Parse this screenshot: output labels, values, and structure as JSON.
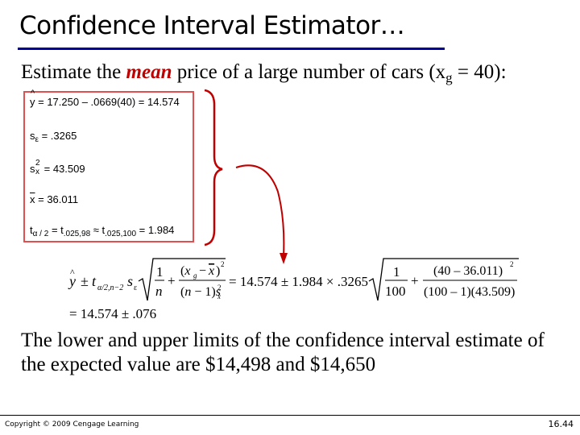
{
  "title": "Confidence Interval Estimator…",
  "subtitle": {
    "before": "Estimate the ",
    "emphasis": "mean",
    "after": " price of a large number of cars (x",
    "sub": "g",
    "end": " = 40):"
  },
  "stats": {
    "yhat_expr": "= 17.250 – .0669(40) = 14.574",
    "se_expr": "= .3265",
    "sx2_expr": "= 43.509",
    "xbar_expr": "= 36.011",
    "t_mid": "= t",
    "t_sub1": ".025,98",
    "t_approx": " ≈ t",
    "t_sub2": ".025,100",
    "t_end": " = 1.984"
  },
  "formula": {
    "numeric_mid": "= 14.574 ± 1.984 × .3265",
    "frac1_num": "1",
    "frac1_den": "100",
    "frac2_num": "(40 – 36.011)",
    "frac2_den": "(100 – 1)(43.509)",
    "result": "= 14.574 ± .076"
  },
  "conclusion": "The lower and upper limits of the confidence interval estimate of the expected value are $14,498 and $14,650",
  "footer": {
    "copyright": "Copyright © 2009 Cengage Learning",
    "page": "16.44"
  }
}
